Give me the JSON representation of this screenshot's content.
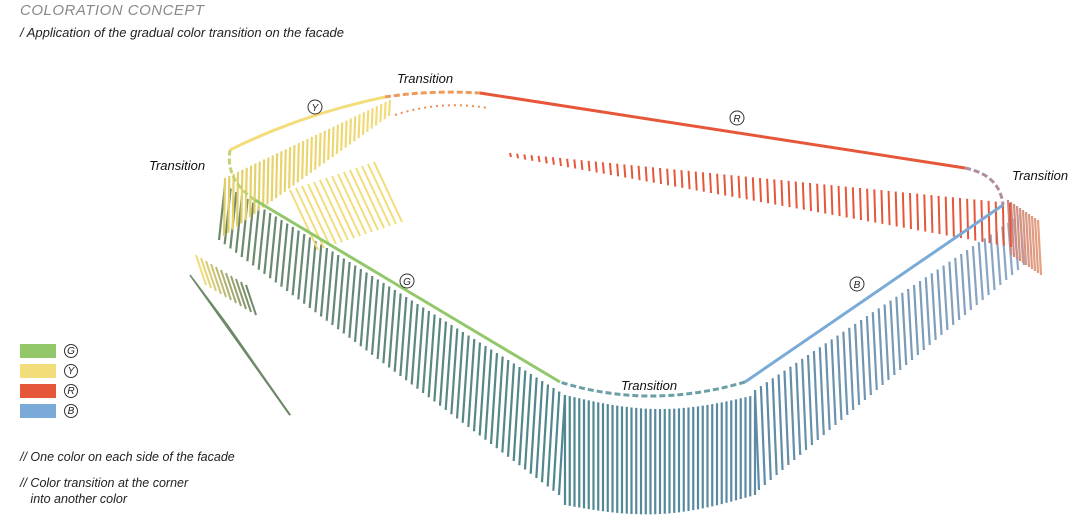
{
  "title": "COLORATION CONCEPT",
  "subtitle": "/ Application of the gradual color transition on the facade",
  "colors": {
    "green": "#92c86a",
    "yellow": "#f3dc7a",
    "red": "#e6573a",
    "blue": "#7aaad8",
    "facade_dark": "#6f8a6a",
    "facade_teal": "#4f8890"
  },
  "labels": {
    "transition_top": "Transition",
    "transition_left": "Transition",
    "transition_right": "Transition",
    "transition_bottom": "Transition",
    "side_g": "G",
    "side_y": "Y",
    "side_r": "R",
    "side_b": "B"
  },
  "legend": [
    {
      "letter": "G",
      "color": "#92c86a"
    },
    {
      "letter": "Y",
      "color": "#f3dc7a"
    },
    {
      "letter": "R",
      "color": "#e6573a"
    },
    {
      "letter": "B",
      "color": "#7aaad8"
    }
  ],
  "notes": [
    "// One color on each side of the facade",
    "// Color transition at the corner\n   into another color"
  ]
}
